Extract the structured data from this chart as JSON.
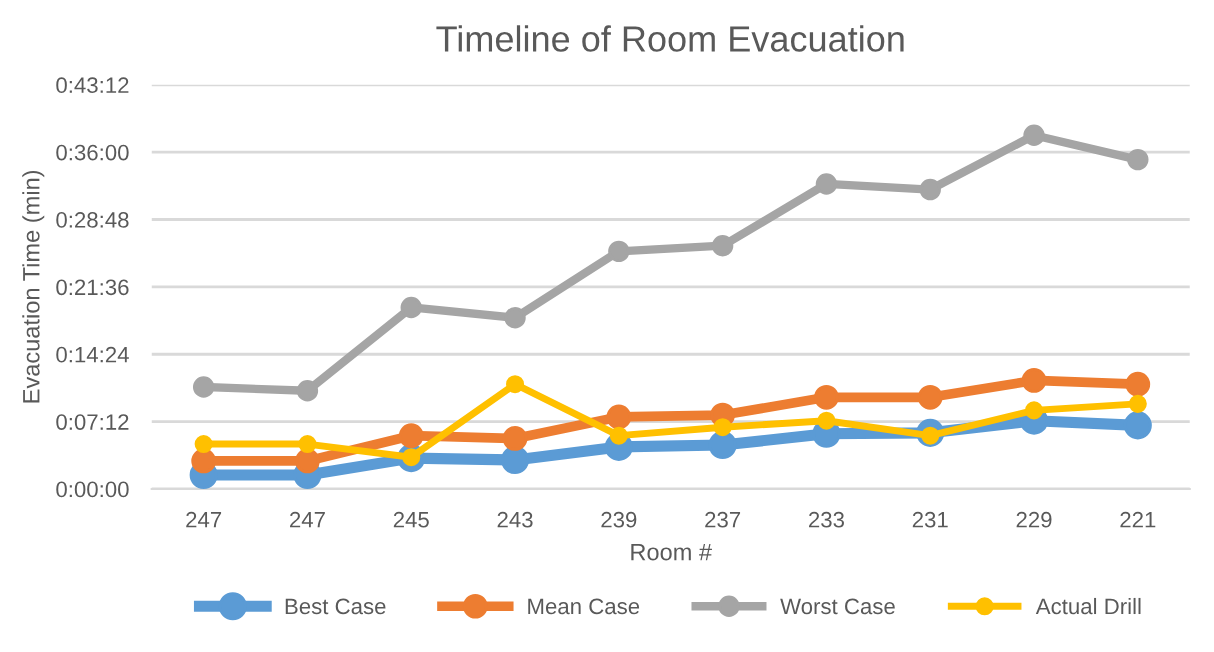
{
  "chart_data": {
    "type": "line",
    "title": "Timeline of Room Evacuation",
    "xlabel": "Room #",
    "ylabel": "Evacuation Time (min)",
    "categories": [
      "247",
      "247",
      "245",
      "243",
      "239",
      "237",
      "233",
      "231",
      "229",
      "221"
    ],
    "series": [
      {
        "name": "Best Case",
        "color": "#5b9bd5",
        "values": [
          1.5,
          1.5,
          3.3,
          3.1,
          4.5,
          4.7,
          5.9,
          6.0,
          7.3,
          6.8
        ]
      },
      {
        "name": "Mean Case",
        "color": "#ed7d31",
        "values": [
          3.0,
          3.0,
          5.7,
          5.4,
          7.7,
          7.9,
          9.8,
          9.8,
          11.6,
          11.2
        ]
      },
      {
        "name": "Worst Case",
        "color": "#a5a5a5",
        "values": [
          10.9,
          10.5,
          19.4,
          18.3,
          25.4,
          26.0,
          32.6,
          32.0,
          37.8,
          35.2
        ]
      },
      {
        "name": "Actual Drill",
        "color": "#ffc000",
        "values": [
          4.8,
          4.8,
          3.4,
          11.2,
          5.7,
          6.6,
          7.3,
          5.7,
          8.4,
          9.1
        ]
      }
    ],
    "ylim": [
      0,
      43.2
    ],
    "yticks": [
      {
        "value": 0,
        "label": "0:00:00"
      },
      {
        "value": 7.2,
        "label": "0:07:12"
      },
      {
        "value": 14.4,
        "label": "0:14:24"
      },
      {
        "value": 21.6,
        "label": "0:21:36"
      },
      {
        "value": 28.8,
        "label": "0:28:48"
      },
      {
        "value": 36,
        "label": "0:36:00"
      },
      {
        "value": 43.2,
        "label": "0:43:12"
      }
    ],
    "grid": "y",
    "legend": "bottom",
    "marker": "circle",
    "line_style": "solid"
  }
}
